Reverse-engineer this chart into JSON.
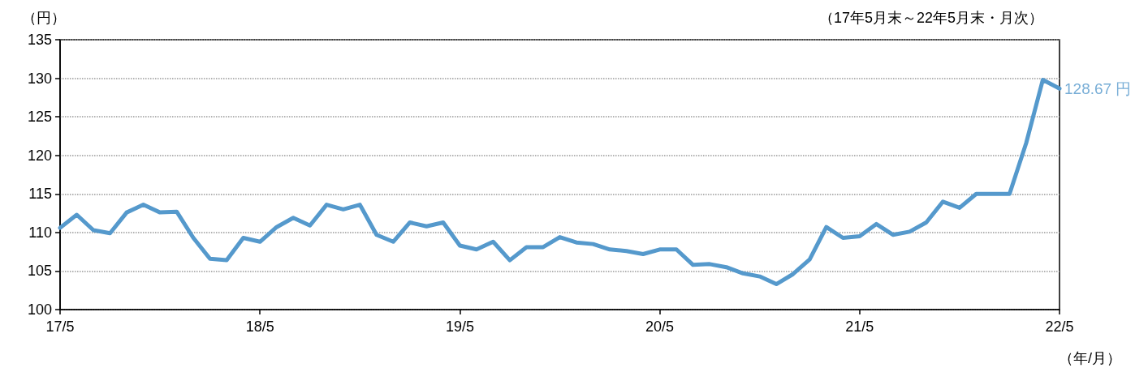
{
  "chart_data": {
    "type": "line",
    "subtitle": "（17年5月末～22年5月末・月次）",
    "ylabel": "（円）",
    "xlabel": "（年/月）",
    "categories": [
      "17/5",
      null,
      null,
      null,
      null,
      null,
      null,
      null,
      null,
      null,
      null,
      null,
      "18/5",
      null,
      null,
      null,
      null,
      null,
      null,
      null,
      null,
      null,
      null,
      null,
      "19/5",
      null,
      null,
      null,
      null,
      null,
      null,
      null,
      null,
      null,
      null,
      null,
      "20/5",
      null,
      null,
      null,
      null,
      null,
      null,
      null,
      null,
      null,
      null,
      null,
      "21/5",
      null,
      null,
      null,
      null,
      null,
      null,
      null,
      null,
      null,
      null,
      null,
      "22/5"
    ],
    "series": [
      {
        "color": "#5599cc",
        "values": [
          110.6,
          112.3,
          110.3,
          109.9,
          112.6,
          113.6,
          112.6,
          112.7,
          109.3,
          106.6,
          106.4,
          109.3,
          108.8,
          110.7,
          111.9,
          110.9,
          113.6,
          113.0,
          113.6,
          109.7,
          108.8,
          111.3,
          110.8,
          111.3,
          108.3,
          107.8,
          108.8,
          106.4,
          108.1,
          108.1,
          109.4,
          108.7,
          108.5,
          107.8,
          107.6,
          107.2,
          107.8,
          107.8,
          105.8,
          105.9,
          105.5,
          104.7,
          104.3,
          103.3,
          104.6,
          106.5,
          110.7,
          109.3,
          109.5,
          111.1,
          109.7,
          110.1,
          111.3,
          114.0,
          113.2,
          115.0,
          115.0,
          115.0,
          121.6,
          129.8,
          128.67
        ]
      }
    ],
    "ylim": [
      100,
      135
    ],
    "yticks": [
      100,
      105,
      110,
      115,
      120,
      125,
      130,
      135
    ],
    "grid": "y",
    "marker": "none",
    "line_style": "solid",
    "annotations": [
      {
        "text": "128.67 円",
        "x": "22/5",
        "y": 128.67
      }
    ]
  }
}
